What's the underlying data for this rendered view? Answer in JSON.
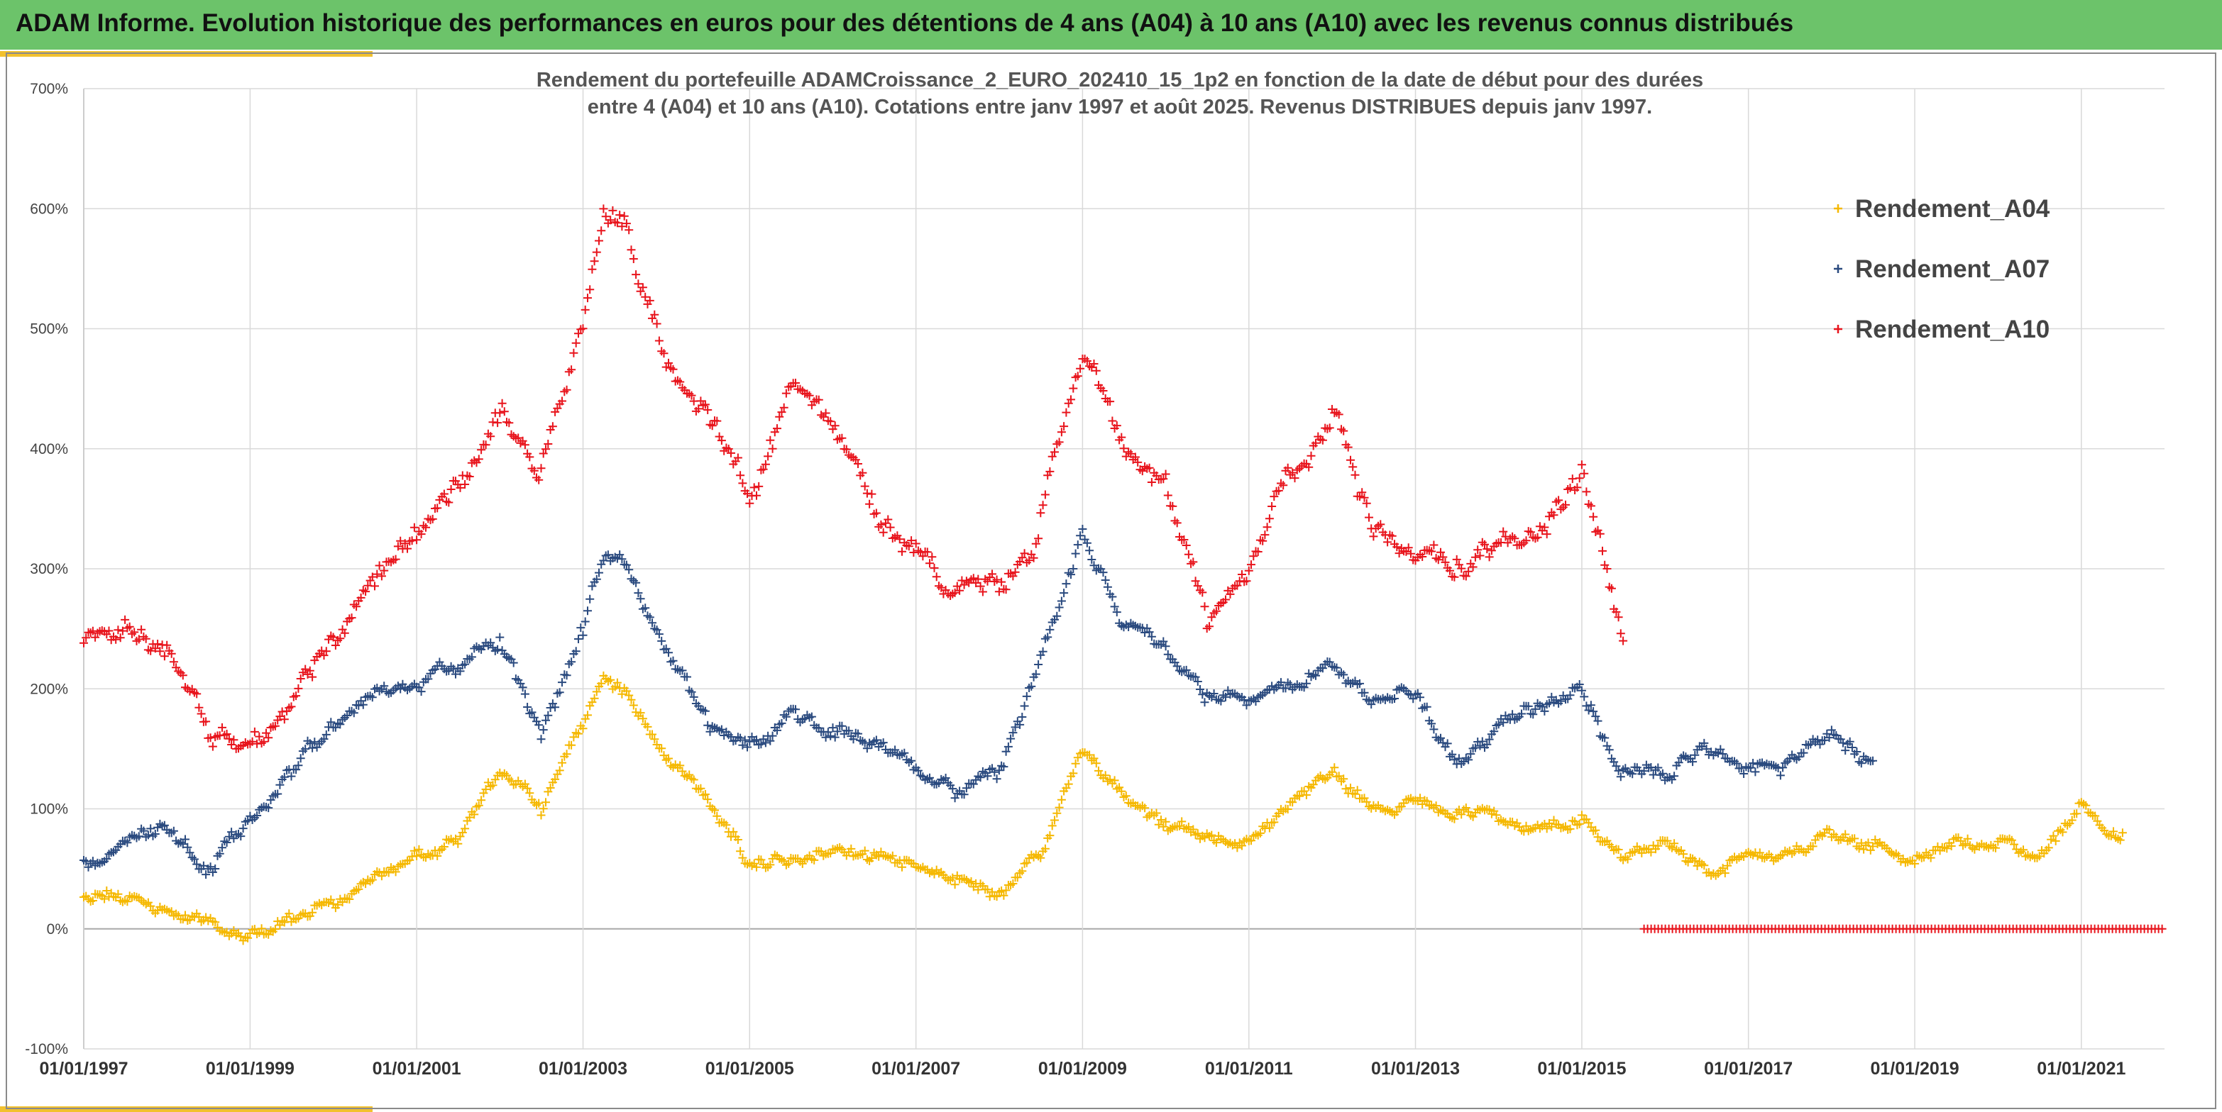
{
  "header": {
    "title": "ADAM Informe. Evolution historique des performances en euros pour des détentions de 4 ans (A04) à 10 ans (A10) avec les revenus connus distribués"
  },
  "colors": {
    "banner": "#6cc36a",
    "accent": "#f2c12e",
    "A04": "#f5b800",
    "A07": "#2a4a7f",
    "A10": "#e8141c",
    "grid": "#d9d9d9"
  },
  "chart_data": {
    "type": "scatter",
    "title_lines": [
      "Rendement du portefeuille ADAMCroissance_2_EURO_202410_15_1p2  en fonction de la date de début pour des durées",
      "entre 4 (A04) et 10 ans (A10). Cotations entre janv 1997 et août 2025. Revenus DISTRIBUES depuis janv 1997."
    ],
    "xlabel": "",
    "ylabel": "",
    "ylim": [
      -100,
      700
    ],
    "y_unit": "%",
    "y_ticks": [
      "-100%",
      "0%",
      "100%",
      "200%",
      "300%",
      "400%",
      "500%",
      "600%",
      "700%"
    ],
    "x_ticks": [
      "01/01/1997",
      "01/01/1999",
      "01/01/2001",
      "01/01/2003",
      "01/01/2005",
      "01/01/2007",
      "01/01/2009",
      "01/01/2011",
      "01/01/2013",
      "01/01/2015",
      "01/01/2017",
      "01/01/2019",
      "01/01/2021"
    ],
    "x_range": [
      "1997-01-01",
      "2022-01-01"
    ],
    "grid": true,
    "legend_position": "top-right",
    "marker": "+",
    "series": [
      {
        "name": "Rendement_A04",
        "x": [
          "1997-01",
          "1997-07",
          "1998-01",
          "1998-07",
          "1999-01",
          "1999-07",
          "2000-01",
          "2000-07",
          "2001-01",
          "2001-07",
          "2002-01",
          "2002-07",
          "2003-01",
          "2003-04",
          "2003-07",
          "2004-01",
          "2004-07",
          "2005-01",
          "2005-07",
          "2006-01",
          "2006-07",
          "2007-01",
          "2007-07",
          "2008-01",
          "2008-07",
          "2009-01",
          "2009-07",
          "2010-01",
          "2010-07",
          "2011-01",
          "2011-07",
          "2012-01",
          "2012-07",
          "2013-01",
          "2013-07",
          "2014-01",
          "2014-07",
          "2015-01",
          "2015-07",
          "2016-01",
          "2016-07",
          "2017-01",
          "2017-07",
          "2018-01",
          "2018-07",
          "2019-01",
          "2019-07",
          "2020-01",
          "2020-07",
          "2021-01",
          "2021-07"
        ],
        "y": [
          30,
          25,
          15,
          5,
          -3,
          8,
          20,
          45,
          60,
          70,
          130,
          100,
          170,
          210,
          200,
          140,
          110,
          55,
          60,
          65,
          60,
          50,
          40,
          30,
          60,
          150,
          110,
          85,
          80,
          75,
          105,
          135,
          100,
          105,
          95,
          90,
          85,
          90,
          60,
          75,
          50,
          60,
          65,
          80,
          70,
          55,
          75,
          70,
          60,
          105,
          80
        ]
      },
      {
        "name": "Rendement_A07",
        "x": [
          "1997-01",
          "1997-07",
          "1998-01",
          "1998-07",
          "1999-01",
          "1999-07",
          "2000-01",
          "2000-07",
          "2001-01",
          "2001-07",
          "2002-01",
          "2002-07",
          "2003-01",
          "2003-04",
          "2003-07",
          "2004-01",
          "2004-07",
          "2005-01",
          "2005-07",
          "2006-01",
          "2006-07",
          "2007-01",
          "2007-07",
          "2008-01",
          "2008-07",
          "2009-01",
          "2009-07",
          "2010-01",
          "2010-07",
          "2011-01",
          "2011-07",
          "2012-01",
          "2012-07",
          "2013-01",
          "2013-07",
          "2014-01",
          "2014-07",
          "2015-01",
          "2015-07",
          "2016-01",
          "2016-07",
          "2017-01",
          "2017-07",
          "2018-01",
          "2018-07"
        ],
        "y": [
          55,
          75,
          80,
          50,
          90,
          130,
          170,
          200,
          200,
          220,
          240,
          160,
          250,
          310,
          305,
          230,
          170,
          155,
          180,
          165,
          155,
          130,
          110,
          130,
          230,
          330,
          255,
          230,
          200,
          185,
          200,
          220,
          190,
          195,
          140,
          170,
          185,
          200,
          130,
          125,
          150,
          130,
          140,
          165,
          140
        ]
      },
      {
        "name": "Rendement_A10",
        "x": [
          "1997-01",
          "1997-07",
          "1998-01",
          "1998-07",
          "1999-01",
          "1999-07",
          "2000-01",
          "2000-07",
          "2001-01",
          "2001-07",
          "2002-01",
          "2002-07",
          "2003-01",
          "2003-04",
          "2003-07",
          "2004-01",
          "2004-07",
          "2005-01",
          "2005-07",
          "2006-01",
          "2006-07",
          "2007-01",
          "2007-07",
          "2008-01",
          "2008-07",
          "2009-01",
          "2009-07",
          "2010-01",
          "2010-07",
          "2011-01",
          "2011-07",
          "2012-01",
          "2012-07",
          "2013-01",
          "2013-07",
          "2014-01",
          "2014-07",
          "2015-01",
          "2015-07"
        ],
        "y": [
          245,
          250,
          230,
          160,
          150,
          190,
          240,
          285,
          330,
          370,
          430,
          380,
          500,
          600,
          590,
          470,
          430,
          360,
          450,
          420,
          350,
          320,
          285,
          285,
          340,
          480,
          400,
          370,
          260,
          300,
          380,
          440,
          330,
          310,
          300,
          320,
          330,
          380,
          240
        ]
      },
      {
        "name": "Rendement_A10 (zero values)",
        "x_start": "2015-10",
        "x_end": "2022-01",
        "y": 0
      }
    ]
  }
}
